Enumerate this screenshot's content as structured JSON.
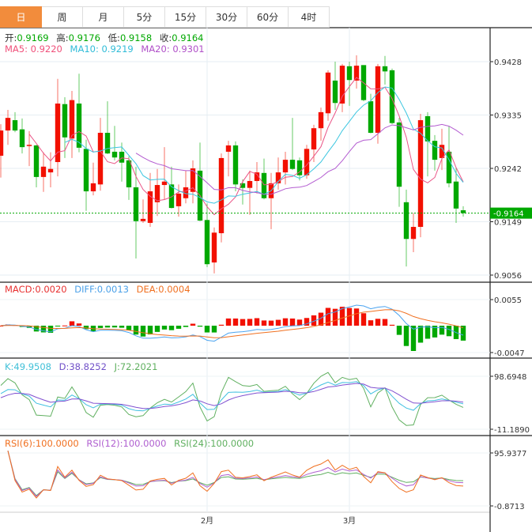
{
  "tabs": [
    "日",
    "周",
    "月",
    "5分",
    "15分",
    "30分",
    "60分",
    "4时"
  ],
  "active_tab": 0,
  "ohlc_header": {
    "open_label": "开:",
    "open": "0.9169",
    "high_label": "高:",
    "high": "0.9176",
    "low_label": "低:",
    "low": "0.9158",
    "close_label": "收:",
    "close": "0.9164"
  },
  "ma_legend": {
    "ma5": "MA5: 0.9220",
    "ma10": "MA10: 0.9219",
    "ma20": "MA20: 0.9301"
  },
  "macd_legend": {
    "macd": "MACD:0.0020",
    "diff": "DIFF:0.0013",
    "dea": "DEA:0.0004"
  },
  "kdj_legend": {
    "k": "K:49.9508",
    "d": "D:38.8252",
    "j": "J:72.2021"
  },
  "rsi_legend": {
    "rsi6": "RSI(6):100.0000",
    "rsi12": "RSI(12):100.0000",
    "rsi24": "RSI(24):100.0000"
  },
  "price_axis": [
    "0.9428",
    "0.9335",
    "0.9242",
    "0.9149",
    "0.9056"
  ],
  "current_price": "0.9164",
  "macd_axis": [
    "0.0055",
    "-0.0047"
  ],
  "kdj_axis": [
    "98.6948",
    "-11.1890"
  ],
  "rsi_axis": [
    "95.9377",
    "-0.8713"
  ],
  "x_axis": [
    {
      "label": "2月",
      "index": 29
    },
    {
      "label": "3月",
      "index": 49
    }
  ],
  "colors": {
    "up": "#f21000",
    "down": "#00a800",
    "accent": "#f28c3c",
    "ma5": "#ea5486",
    "ma10": "#3cc6e0",
    "ma20": "#b35bd0",
    "diff": "#4aa3f0",
    "dea": "#f07020",
    "k": "#40c0e0",
    "d": "#8050d0",
    "j": "#60b060",
    "rsi6": "#f07020",
    "rsi12": "#b060d0",
    "rsi24": "#60b060"
  },
  "chart_data": {
    "type": "candlestick",
    "ylim": [
      0.9056,
      0.9428
    ],
    "ohlc": [
      [
        0.9264,
        0.9319,
        0.9226,
        0.9308
      ],
      [
        0.9308,
        0.9344,
        0.9283,
        0.933
      ],
      [
        0.9326,
        0.934,
        0.9305,
        0.9308
      ],
      [
        0.931,
        0.9329,
        0.9268,
        0.9279
      ],
      [
        0.9281,
        0.9307,
        0.9246,
        0.9283
      ],
      [
        0.9282,
        0.9283,
        0.9209,
        0.9227
      ],
      [
        0.9227,
        0.927,
        0.9201,
        0.9245
      ],
      [
        0.9235,
        0.927,
        0.9209,
        0.9241
      ],
      [
        0.9253,
        0.9398,
        0.9228,
        0.9355
      ],
      [
        0.9354,
        0.9366,
        0.926,
        0.9296
      ],
      [
        0.9294,
        0.9377,
        0.926,
        0.9361
      ],
      [
        0.9355,
        0.9407,
        0.927,
        0.9278
      ],
      [
        0.9276,
        0.9292,
        0.9168,
        0.9202
      ],
      [
        0.9202,
        0.9252,
        0.9195,
        0.9216
      ],
      [
        0.9214,
        0.933,
        0.9203,
        0.9304
      ],
      [
        0.9304,
        0.9359,
        0.9267,
        0.9268
      ],
      [
        0.9271,
        0.9316,
        0.9256,
        0.9261
      ],
      [
        0.9271,
        0.9287,
        0.9219,
        0.9252
      ],
      [
        0.9256,
        0.9263,
        0.9187,
        0.9209
      ],
      [
        0.9209,
        0.9245,
        0.9085,
        0.915
      ],
      [
        0.915,
        0.9188,
        0.9147,
        0.9154
      ],
      [
        0.9147,
        0.9234,
        0.914,
        0.9202
      ],
      [
        0.9183,
        0.9241,
        0.9159,
        0.9213
      ],
      [
        0.9213,
        0.9279,
        0.9187,
        0.9219
      ],
      [
        0.9214,
        0.9245,
        0.9172,
        0.9173
      ],
      [
        0.9176,
        0.9214,
        0.9158,
        0.9198
      ],
      [
        0.919,
        0.9238,
        0.9181,
        0.9209
      ],
      [
        0.9201,
        0.9256,
        0.9181,
        0.9242
      ],
      [
        0.9238,
        0.9287,
        0.915,
        0.9151
      ],
      [
        0.9152,
        0.9181,
        0.907,
        0.9075
      ],
      [
        0.9078,
        0.9139,
        0.9059,
        0.913
      ],
      [
        0.9129,
        0.9268,
        0.9113,
        0.926
      ],
      [
        0.9271,
        0.929,
        0.9228,
        0.9282
      ],
      [
        0.9282,
        0.9289,
        0.9202,
        0.9214
      ],
      [
        0.9216,
        0.9223,
        0.9179,
        0.9208
      ],
      [
        0.9208,
        0.9238,
        0.9161,
        0.922
      ],
      [
        0.922,
        0.9253,
        0.9198,
        0.9235
      ],
      [
        0.9234,
        0.9259,
        0.9188,
        0.919
      ],
      [
        0.919,
        0.9234,
        0.9136,
        0.9216
      ],
      [
        0.9216,
        0.9261,
        0.9205,
        0.9235
      ],
      [
        0.9235,
        0.9271,
        0.9214,
        0.9257
      ],
      [
        0.9257,
        0.933,
        0.9239,
        0.9241
      ],
      [
        0.9256,
        0.9261,
        0.9221,
        0.923
      ],
      [
        0.923,
        0.9283,
        0.9224,
        0.9276
      ],
      [
        0.9275,
        0.9318,
        0.9253,
        0.9312
      ],
      [
        0.9312,
        0.9348,
        0.929,
        0.934
      ],
      [
        0.9338,
        0.9413,
        0.9325,
        0.9409
      ],
      [
        0.9395,
        0.9428,
        0.9344,
        0.9356
      ],
      [
        0.9355,
        0.9424,
        0.934,
        0.9421
      ],
      [
        0.942,
        0.9428,
        0.9351,
        0.9396
      ],
      [
        0.9395,
        0.9439,
        0.9381,
        0.9421
      ],
      [
        0.9422,
        0.9422,
        0.9359,
        0.9361
      ],
      [
        0.9359,
        0.9372,
        0.9303,
        0.9304
      ],
      [
        0.9304,
        0.9424,
        0.9285,
        0.942
      ],
      [
        0.942,
        0.9438,
        0.9388,
        0.9411
      ],
      [
        0.9413,
        0.9416,
        0.9319,
        0.9321
      ],
      [
        0.9322,
        0.933,
        0.9175,
        0.921
      ],
      [
        0.9183,
        0.9205,
        0.9071,
        0.9119
      ],
      [
        0.9119,
        0.9164,
        0.9096,
        0.914
      ],
      [
        0.914,
        0.9337,
        0.9122,
        0.9326
      ],
      [
        0.9333,
        0.934,
        0.9228,
        0.9289
      ],
      [
        0.929,
        0.93,
        0.9238,
        0.9257
      ],
      [
        0.926,
        0.9311,
        0.9239,
        0.9283
      ],
      [
        0.9271,
        0.9315,
        0.9209,
        0.9216
      ],
      [
        0.9219,
        0.9243,
        0.9147,
        0.9172
      ],
      [
        0.9169,
        0.9176,
        0.9158,
        0.9164
      ]
    ]
  }
}
